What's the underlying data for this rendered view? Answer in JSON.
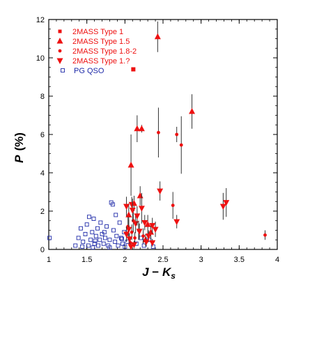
{
  "colors": {
    "red": "#ee1111",
    "blue": "#1e2aa8",
    "errorbar": "#333333"
  },
  "chart_data": {
    "type": "scatter",
    "xlabel_main": "J",
    "xlabel_op": " − ",
    "xlabel_main2": "K",
    "xlabel_sub": "s",
    "ylabel_main": "P",
    "ylabel_unit": "(%)",
    "xlim": [
      1,
      4
    ],
    "ylim": [
      0,
      12
    ],
    "x_ticks": [
      1,
      1.5,
      2,
      2.5,
      3,
      3.5,
      4
    ],
    "x_tick_labels": [
      "1",
      "1.5",
      "2",
      "2.5",
      "3",
      "3.5",
      "4"
    ],
    "y_ticks": [
      0,
      2,
      4,
      6,
      8,
      10,
      12
    ],
    "y_tick_labels": [
      "0",
      "2",
      "4",
      "6",
      "8",
      "10",
      "12"
    ],
    "legend_position": "top-left",
    "series": [
      {
        "name": "2MASS Type 1",
        "marker": "square",
        "color": "#ee1111",
        "points": [
          {
            "x": 2.11,
            "y": 9.4,
            "err": 0
          }
        ]
      },
      {
        "name": "2MASS Type 1.5",
        "marker": "triangle-up",
        "color": "#ee1111",
        "points": [
          {
            "x": 2.43,
            "y": 11.1,
            "err": 0.8
          },
          {
            "x": 2.16,
            "y": 6.3,
            "err": 0.7
          },
          {
            "x": 2.22,
            "y": 6.3,
            "err": 0.2
          },
          {
            "x": 2.88,
            "y": 7.2,
            "err": 0.9
          },
          {
            "x": 2.08,
            "y": 4.4,
            "err": 1.6
          },
          {
            "x": 2.2,
            "y": 2.8,
            "err": 0.5
          },
          {
            "x": 2.12,
            "y": 2.4,
            "err": 0.4
          },
          {
            "x": 2.05,
            "y": 1.8,
            "err": 0.6
          },
          {
            "x": 2.3,
            "y": 1.3,
            "err": 0.5
          },
          {
            "x": 2.34,
            "y": 0.9,
            "err": 0.4
          },
          {
            "x": 2.27,
            "y": 0.5,
            "err": 0.3
          }
        ]
      },
      {
        "name": "2MASS Type 1.8-2",
        "marker": "circle",
        "color": "#ee1111",
        "points": [
          {
            "x": 2.44,
            "y": 6.1,
            "err": 1.3
          },
          {
            "x": 2.68,
            "y": 6.0,
            "err": 0.4
          },
          {
            "x": 2.74,
            "y": 5.45,
            "err": 1.5
          },
          {
            "x": 2.63,
            "y": 2.3,
            "err": 0.7
          },
          {
            "x": 3.84,
            "y": 0.75,
            "err": 0.25
          },
          {
            "x": 2.04,
            "y": 1.2,
            "err": 0.5
          },
          {
            "x": 2.09,
            "y": 0.9,
            "err": 0.4
          },
          {
            "x": 2.13,
            "y": 0.6,
            "err": 0.3
          },
          {
            "x": 2.18,
            "y": 1.0,
            "err": 0.5
          },
          {
            "x": 2.07,
            "y": 0.35,
            "err": 0.3
          },
          {
            "x": 2.24,
            "y": 0.7,
            "err": 0.4
          },
          {
            "x": 2.11,
            "y": 1.5,
            "err": 0.6
          }
        ]
      },
      {
        "name": "2MASS Type 1.?",
        "marker": "triangle-down",
        "color": "#ee1111",
        "points": [
          {
            "x": 2.46,
            "y": 3.05,
            "err": 0.5
          },
          {
            "x": 2.68,
            "y": 1.45,
            "err": 0.35
          },
          {
            "x": 3.29,
            "y": 2.25,
            "err": 0.7
          },
          {
            "x": 3.33,
            "y": 2.45,
            "err": 0.75
          },
          {
            "x": 2.02,
            "y": 2.25,
            "err": 0.5
          },
          {
            "x": 2.09,
            "y": 2.35,
            "err": 0.4
          },
          {
            "x": 2.1,
            "y": 2.05,
            "err": 0.6
          },
          {
            "x": 2.22,
            "y": 2.15,
            "err": 0.8
          },
          {
            "x": 2.14,
            "y": 1.35,
            "err": 0.5
          },
          {
            "x": 2.05,
            "y": 1.05,
            "err": 0.5
          },
          {
            "x": 2.36,
            "y": 1.25,
            "err": 0.4
          },
          {
            "x": 2.4,
            "y": 1.05,
            "err": 0.4
          },
          {
            "x": 2.31,
            "y": 0.7,
            "err": 0.3
          },
          {
            "x": 2.26,
            "y": 1.4,
            "err": 0.4
          },
          {
            "x": 2.19,
            "y": 0.95,
            "err": 0.4
          },
          {
            "x": 2.06,
            "y": 0.55,
            "err": 0.3
          },
          {
            "x": 2.12,
            "y": 0.25,
            "err": 0.2
          },
          {
            "x": 2.28,
            "y": 0.4,
            "err": 0.25
          },
          {
            "x": 2.36,
            "y": 0.35,
            "err": 0.2
          },
          {
            "x": 2.02,
            "y": 0.8,
            "err": 0.4
          },
          {
            "x": 2.16,
            "y": 1.75,
            "err": 0.5
          },
          {
            "x": 2.08,
            "y": 0.15,
            "err": 0.15
          }
        ]
      },
      {
        "name": "PG QSO",
        "marker": "square-open",
        "color": "#1e2aa8",
        "points": [
          {
            "x": 1.01,
            "y": 0.6
          },
          {
            "x": 1.35,
            "y": 0.2
          },
          {
            "x": 1.39,
            "y": 0.6
          },
          {
            "x": 1.42,
            "y": 1.1
          },
          {
            "x": 1.45,
            "y": 0.4
          },
          {
            "x": 1.48,
            "y": 0.8
          },
          {
            "x": 1.5,
            "y": 1.3
          },
          {
            "x": 1.52,
            "y": 0.2
          },
          {
            "x": 1.55,
            "y": 0.5
          },
          {
            "x": 1.57,
            "y": 0.9
          },
          {
            "x": 1.59,
            "y": 1.6
          },
          {
            "x": 1.6,
            "y": 0.3
          },
          {
            "x": 1.62,
            "y": 0.7
          },
          {
            "x": 1.64,
            "y": 1.1
          },
          {
            "x": 1.65,
            "y": 0.2
          },
          {
            "x": 1.67,
            "y": 0.5
          },
          {
            "x": 1.7,
            "y": 0.8
          },
          {
            "x": 1.72,
            "y": 0.3
          },
          {
            "x": 1.74,
            "y": 0.6
          },
          {
            "x": 1.76,
            "y": 1.2
          },
          {
            "x": 1.78,
            "y": 0.2
          },
          {
            "x": 1.8,
            "y": 0.5
          },
          {
            "x": 1.82,
            "y": 2.45
          },
          {
            "x": 1.84,
            "y": 2.35
          },
          {
            "x": 1.85,
            "y": 1.0
          },
          {
            "x": 1.87,
            "y": 0.4
          },
          {
            "x": 1.89,
            "y": 0.7
          },
          {
            "x": 1.91,
            "y": 0.2
          },
          {
            "x": 1.93,
            "y": 1.4
          },
          {
            "x": 1.95,
            "y": 0.6
          },
          {
            "x": 1.97,
            "y": 0.3
          },
          {
            "x": 1.99,
            "y": 0.9
          },
          {
            "x": 2.0,
            "y": 0.15
          },
          {
            "x": 1.53,
            "y": 1.7
          },
          {
            "x": 1.58,
            "y": 0.1
          },
          {
            "x": 1.68,
            "y": 1.4
          },
          {
            "x": 1.73,
            "y": 0.9
          },
          {
            "x": 1.88,
            "y": 1.8
          },
          {
            "x": 1.44,
            "y": 0.15
          },
          {
            "x": 1.61,
            "y": 0.45
          },
          {
            "x": 1.8,
            "y": 0.1
          },
          {
            "x": 1.96,
            "y": 0.55
          },
          {
            "x": 2.03,
            "y": 0.4
          },
          {
            "x": 2.15,
            "y": 0.3
          },
          {
            "x": 2.21,
            "y": 0.6
          },
          {
            "x": 2.25,
            "y": 0.2
          },
          {
            "x": 2.32,
            "y": 0.5
          },
          {
            "x": 2.37,
            "y": 0.15
          }
        ]
      }
    ]
  }
}
